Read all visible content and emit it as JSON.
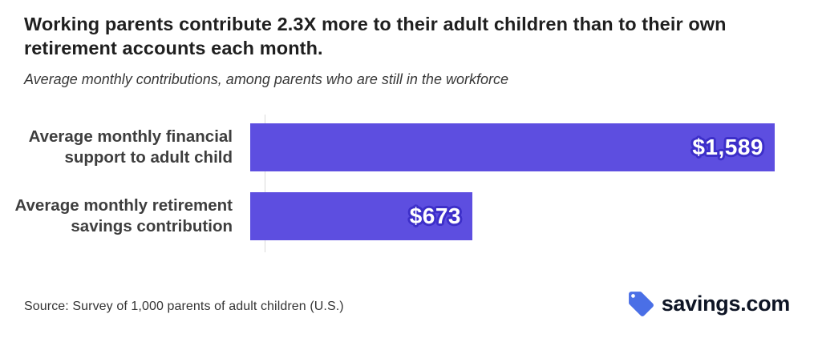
{
  "header": {
    "title_lines": [
      "Working parents contribute 2.3X more to their adult children than to their own",
      "retirement accounts each month."
    ],
    "subtitle": "Average monthly contributions, among parents who are still in the workforce"
  },
  "chart_data": {
    "type": "bar",
    "orientation": "horizontal",
    "title": "Working parents contribute 2.3X more to their adult children than to their own retirement accounts each month.",
    "subtitle": "Average monthly contributions, among parents who are still in the workforce",
    "categories": [
      "Average monthly financial support to adult child",
      "Average monthly retirement savings contribution"
    ],
    "categories_lines": [
      [
        "Average monthly financial",
        "support to adult child"
      ],
      [
        "Average monthly retirement",
        "savings contribution"
      ]
    ],
    "values": [
      1589,
      673
    ],
    "value_labels": [
      "$1,589",
      "$673"
    ],
    "xlabel": "",
    "ylabel": "",
    "xlim": [
      0,
      1600
    ],
    "grid": false,
    "legend_position": "none",
    "value_label_position": "inside-end"
  },
  "colors": {
    "bar": "#5d4ee0",
    "value_outline": "#3d2fc9",
    "logo_blue": "#4a6fe6",
    "title_text": "#1f1f1f",
    "label_text": "#3e3e3e"
  },
  "footer": {
    "source": "Source: Survey of 1,000 parents of adult children (U.S.)",
    "logo_text": "savings.com"
  }
}
